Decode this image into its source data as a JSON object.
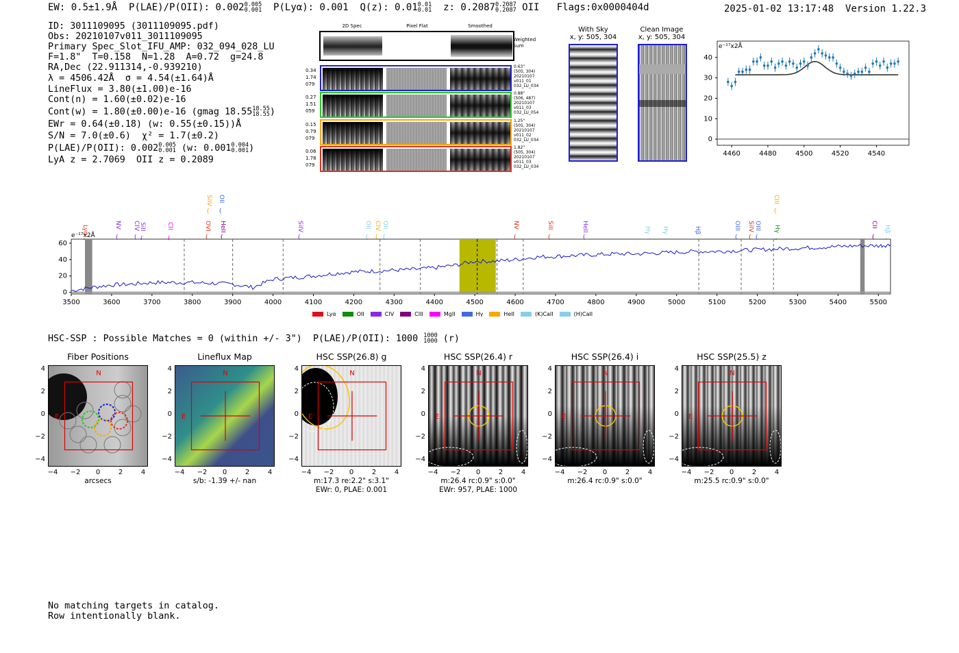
{
  "header": {
    "ew": "EW: 0.5±1.9Å",
    "plae_label": "P(LAE)/P(OII): 0.002",
    "plae_hi": "0.005",
    "plae_lo": "0.001",
    "plya": "P(Lyα): 0.001",
    "qz": "Q(z): 0.01",
    "qz_hi": "0.01",
    "qz_lo": "0.01",
    "z": "z: 0.2087",
    "z_hi": "0.2087",
    "z_lo": "0.2087",
    "z_line": "OII",
    "flags": "Flags:0x0000404d",
    "timestamp": "2025-01-02 13:17:48",
    "version": "Version 1.22.3"
  },
  "info": {
    "id": "ID: 3011109095 (3011109095.pdf)",
    "obs": "Obs: 20210107v011_3011109095",
    "primary": "Primary Spec_Slot_IFU_AMP: 032_094_028_LU",
    "fwhm": "F=1.8\"  T=0.158  N=1.28  A=0.72  g=24.8",
    "radec": "RA,Dec (22.911314,-0.939210)",
    "lambda": "λ = 4506.42Å  σ = 4.54(±1.64)Å",
    "lineflux": "LineFlux = 3.80(±1.00)e-16",
    "contn": "Cont(n) = 1.60(±0.02)e-16",
    "contw": "Cont(w) = 1.80(±0.00)e-16 (gmag 18.55",
    "gmag_hi": "18.55",
    "gmag_lo": "18.55",
    "contw_end": ")",
    "ewr": "EWr = 0.64(±0.18) (w: 0.55(±0.15))Å",
    "sn": "S/N = 7.0(±0.6)  χ² = 1.7(±0.2)",
    "plae2": "P(LAE)/P(OII): 0.002",
    "plae2_hi": "0.005",
    "plae2_lo": "0.001",
    "plae2_w": "(w: 0.001",
    "plae2_w_hi": "0.004",
    "plae2_w_lo": "0.001",
    "plae2_end": ")",
    "lya": "LyA z = 2.7069  OII z = 0.2089"
  },
  "cutouts": {
    "headers": [
      "2D Spec",
      "Pixel Flat",
      "Smoothed"
    ],
    "weighted": "Weighted Sum",
    "rows": [
      {
        "left": [
          "0.34",
          "1.74",
          "079"
        ],
        "right": [
          "0.63\"",
          "(505, 304)",
          "20210107",
          "v011_01",
          "032_LU_034"
        ],
        "color": "#1f1fd0"
      },
      {
        "left": [
          "0.27",
          "1.51",
          "059"
        ],
        "right": [
          "0.88\"",
          "(506, 487)",
          "20210107",
          "v011_03",
          "032_LU_054"
        ],
        "color": "#22cc22"
      },
      {
        "left": [
          "0.15",
          "0.79",
          "079"
        ],
        "right": [
          "1.25\"",
          "(505, 304)",
          "20210107",
          "v011_02",
          "032_LU_034"
        ],
        "color": "#ffa500"
      },
      {
        "left": [
          "0.06",
          "1.78",
          "079"
        ],
        "right": [
          "1.82\"",
          "(505, 304)",
          "20210107",
          "v011_03",
          "032_LU_034"
        ],
        "color": "#e0301e"
      }
    ]
  },
  "sky": {
    "with_title": "With Sky",
    "with_coords": "x, y: 505, 304",
    "clean_title": "Clean Image",
    "clean_coords": "x, y: 505, 304"
  },
  "zoom_plot": {
    "unit": "e⁻¹⁷x2Å",
    "x_ticks": [
      "4460",
      "4480",
      "4500",
      "4520",
      "4540"
    ],
    "y_ticks": [
      "40",
      "30",
      "20",
      "10",
      "0"
    ]
  },
  "spectrum": {
    "unit": "e⁻¹⁷x2Å",
    "y_ticks": [
      "60",
      "40",
      "20",
      "0"
    ],
    "x_ticks": [
      "3500",
      "3600",
      "3700",
      "3800",
      "3900",
      "4000",
      "4100",
      "4200",
      "4300",
      "4400",
      "4500",
      "4600",
      "4700",
      "4800",
      "4900",
      "5000",
      "5100",
      "5200",
      "5300",
      "5400",
      "5500"
    ],
    "line_labels": [
      {
        "t": "Lyα",
        "c": "#e0301e"
      },
      {
        "t": "NV",
        "c": "#8a2be2"
      },
      {
        "t": "CIV",
        "c": "#8a2be2"
      },
      {
        "t": "SiII",
        "c": "#8a2be2"
      },
      {
        "t": "CII",
        "c": "#ff00ff"
      },
      {
        "t": "SiIV",
        "c": "#ffa500"
      },
      {
        "t": "OII",
        "c": "#4169e1"
      },
      {
        "t": "OVI",
        "c": "#e0301e"
      },
      {
        "t": "HeII",
        "c": "#800080"
      },
      {
        "t": "SiIV",
        "c": "#8a2be2"
      },
      {
        "t": "OII",
        "c": "#87ceeb"
      },
      {
        "t": "CIV",
        "c": "#ffa500"
      },
      {
        "t": "OII",
        "c": "#87ceeb"
      },
      {
        "t": "NV",
        "c": "#e0301e"
      },
      {
        "t": "SiII",
        "c": "#e0301e"
      },
      {
        "t": "HeII",
        "c": "#8a2be2"
      },
      {
        "t": "Hγ",
        "c": "#87ceeb"
      },
      {
        "t": "Hγ",
        "c": "#87ceeb"
      },
      {
        "t": "Hβ",
        "c": "#4169e1"
      },
      {
        "t": "OIII",
        "c": "#4169e1"
      },
      {
        "t": "SiIV",
        "c": "#e0301e"
      },
      {
        "t": "OIII",
        "c": "#4169e1"
      },
      {
        "t": "CIII",
        "c": "#ffa500"
      },
      {
        "t": "Hγ",
        "c": "#228b22"
      },
      {
        "t": "CII",
        "c": "#800080"
      },
      {
        "t": "Hβ",
        "c": "#87ceeb"
      }
    ],
    "legend": [
      {
        "label": "Lyα",
        "color": "#e0101e"
      },
      {
        "label": "OII",
        "color": "#108a10"
      },
      {
        "label": "CIV",
        "color": "#8a2be2"
      },
      {
        "label": "CIII",
        "color": "#800080"
      },
      {
        "label": "MgII",
        "color": "#ff00ff"
      },
      {
        "label": "Hγ",
        "color": "#4169e1"
      },
      {
        "label": "HeII",
        "color": "#ffa500"
      },
      {
        "label": "(K)CaII",
        "color": "#87ceeb"
      },
      {
        "label": "(H)CaII",
        "color": "#87ceeb"
      }
    ]
  },
  "hsc": {
    "summary": "HSC-SSP : Possible Matches = 0 (within +/- 3\")  P(LAE)/P(OII): 1000",
    "summary_hi": "1000",
    "summary_lo": "1000",
    "summary_end": "(r)",
    "panels": [
      {
        "title": "Fiber Positions",
        "cap1": "arcsecs",
        "cap2": ""
      },
      {
        "title": "Lineflux Map",
        "cap1": "s/b: -1.39 +/- nan",
        "cap2": ""
      },
      {
        "title": "HSC SSP(26.8) g",
        "cap1": "m:17.3  re:2.2\"  s:3.1\"",
        "cap2": "EWr: 0, PLAE: 0.001"
      },
      {
        "title": "HSC SSP(26.4) r",
        "cap1": "m:26.4 rc:0.9\"  s:0.0\"",
        "cap2": "EWr: 957, PLAE: 1000"
      },
      {
        "title": "HSC SSP(26.4) i",
        "cap1": "m:26.4 rc:0.9\"  s:0.0\"",
        "cap2": ""
      },
      {
        "title": "HSC SSP(25.5) z",
        "cap1": "m:25.5 rc:0.9\"  s:0.0\"",
        "cap2": ""
      }
    ],
    "x_ticks": [
      "−4",
      "−2",
      "0",
      "2",
      "4"
    ],
    "y_ticks": [
      "4",
      "2",
      "0",
      "−2",
      "−4"
    ],
    "north": "N",
    "east": "E"
  },
  "footer": {
    "line1": "No matching targets in catalog.",
    "line2": "Row intentionally blank."
  },
  "chart_data": [
    {
      "type": "scatter",
      "ylabel": "e⁻¹⁷x2Å",
      "xlim": [
        4452,
        4558
      ],
      "ylim": [
        -3,
        48
      ],
      "x": [
        4458,
        4460,
        4462,
        4464,
        4466,
        4468,
        4470,
        4472,
        4474,
        4476,
        4478,
        4480,
        4482,
        4484,
        4486,
        4488,
        4490,
        4492,
        4494,
        4496,
        4498,
        4500,
        4502,
        4504,
        4506,
        4508,
        4510,
        4512,
        4514,
        4516,
        4518,
        4520,
        4522,
        4524,
        4526,
        4528,
        4530,
        4532,
        4534,
        4536,
        4538,
        4540,
        4542,
        4544,
        4546,
        4548,
        4550,
        4552
      ],
      "values": [
        28,
        26,
        28,
        33,
        33,
        34,
        34,
        38,
        38,
        40,
        36,
        36,
        38,
        35,
        37,
        38,
        36,
        38,
        37,
        35,
        37,
        38,
        36,
        40,
        42,
        44,
        42,
        41,
        40,
        40,
        37,
        35,
        33,
        32,
        31,
        32,
        33,
        33,
        35,
        33,
        37,
        38,
        36,
        38,
        35,
        37,
        37,
        38
      ],
      "model_baseline": 31.5,
      "model_peak": 38,
      "model_center": 4506
    },
    {
      "type": "line",
      "ylabel": "e⁻¹⁷x2Å",
      "xlim": [
        3500,
        5530
      ],
      "ylim": [
        -2,
        65
      ],
      "x": [
        3500,
        3550,
        3600,
        3650,
        3700,
        3750,
        3800,
        3850,
        3900,
        3950,
        4000,
        4050,
        4100,
        4150,
        4200,
        4250,
        4300,
        4350,
        4400,
        4450,
        4500,
        4550,
        4600,
        4650,
        4700,
        4750,
        4800,
        4850,
        4900,
        4950,
        5000,
        5050,
        5100,
        5150,
        5200,
        5250,
        5300,
        5350,
        5400,
        5450,
        5500,
        5530
      ],
      "values": [
        2,
        6,
        9,
        10,
        12,
        12,
        12,
        11,
        10,
        6,
        16,
        18,
        20,
        23,
        25,
        26,
        27,
        28,
        30,
        33,
        38,
        38,
        40,
        43,
        44,
        45,
        46,
        47,
        47,
        48,
        49,
        50,
        50,
        51,
        52,
        53,
        54,
        55,
        56,
        57,
        57,
        58
      ],
      "highlight": [
        4462,
        4552
      ],
      "line_center": 4506
    }
  ]
}
